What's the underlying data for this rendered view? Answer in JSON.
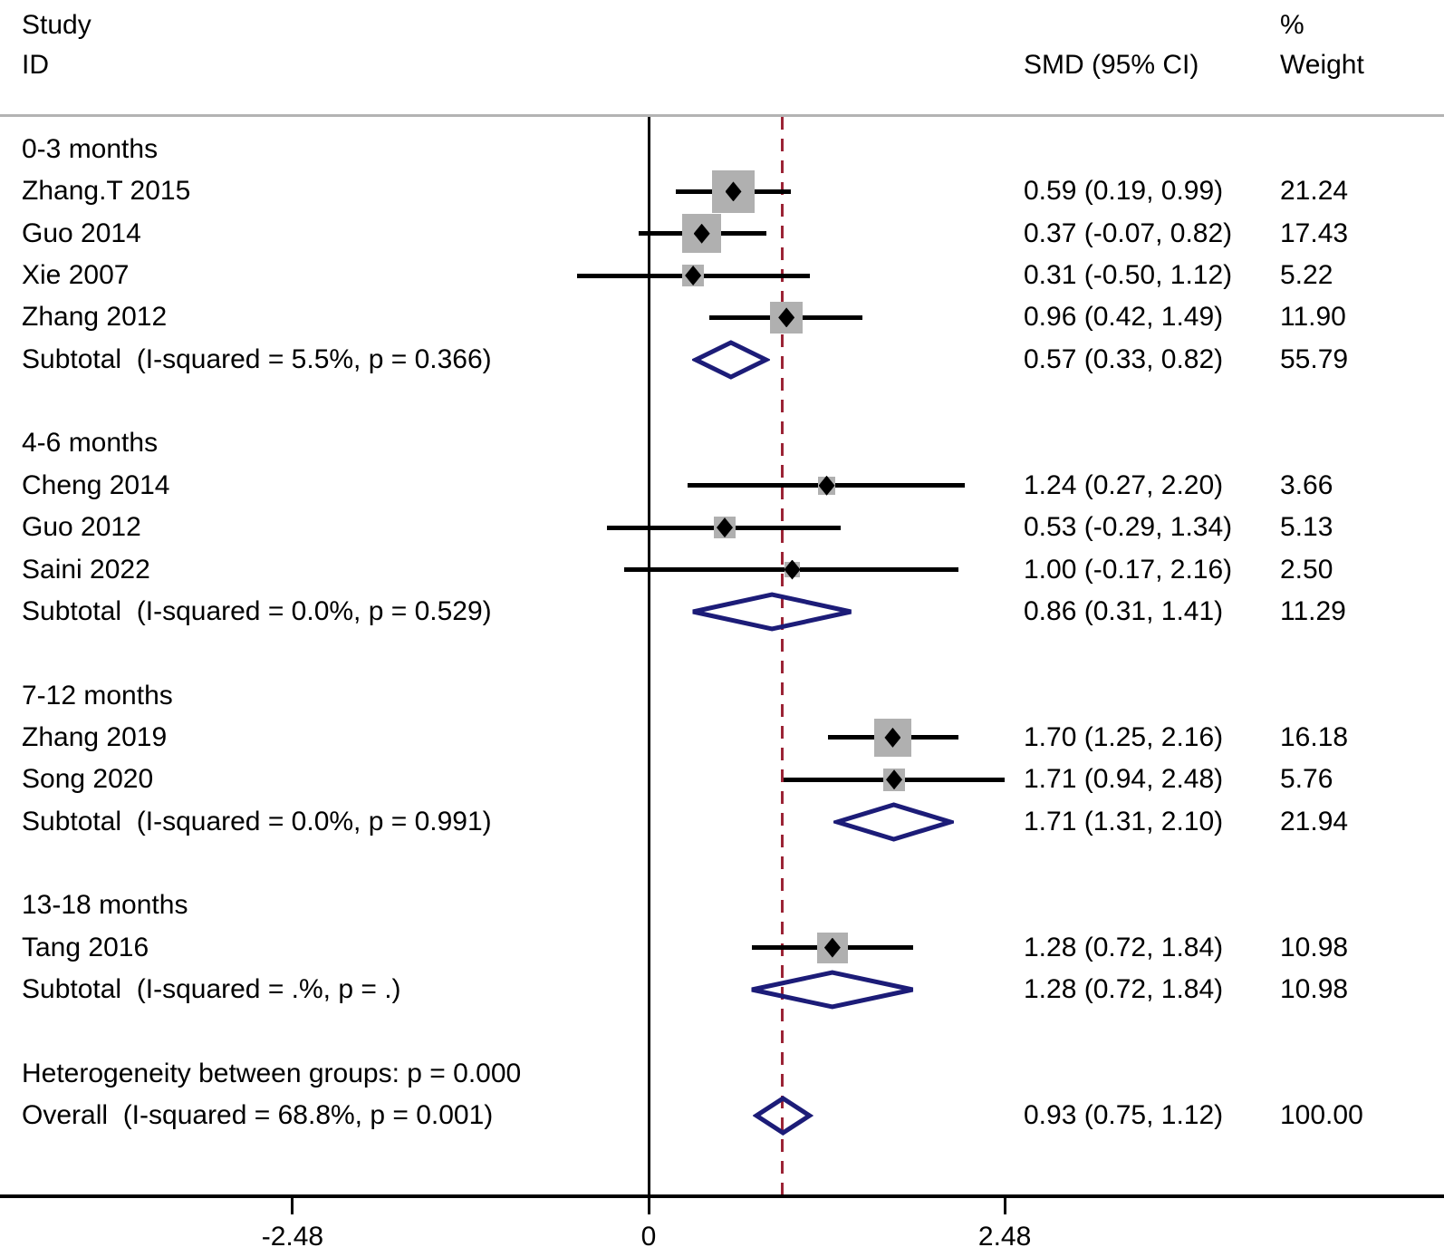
{
  "header": {
    "study_col_line1": "Study",
    "study_col_line2": "ID",
    "smd_col": "SMD (95% CI)",
    "weight_col_line1": "%",
    "weight_col_line2": "Weight"
  },
  "colors": {
    "pooled_diamond": "#1c1c78",
    "overall_dashed_line": "#9b2335",
    "ci_line": "#000000",
    "weight_square": "#b0b0b0",
    "point_marker": "#000000",
    "divider_line": "#b3b3b3",
    "axis_line": "#000000",
    "text": "#000000"
  },
  "chart_data": {
    "type": "forest",
    "effect_measure": "SMD",
    "xlabel": "",
    "x_ticks": [
      -2.48,
      0,
      2.48
    ],
    "x_tick_labels": [
      "-2.48",
      "0",
      "2.48"
    ],
    "null_line_x": 0,
    "overall_line_x": 0.93,
    "groups": [
      {
        "label": "0-3 months",
        "studies": [
          {
            "id": "Zhang.T 2015",
            "smd": 0.59,
            "ci_low": 0.19,
            "ci_high": 0.99,
            "smd_text": "0.59 (0.19, 0.99)",
            "weight": 21.24,
            "weight_text": "21.24"
          },
          {
            "id": "Guo 2014",
            "smd": 0.37,
            "ci_low": -0.07,
            "ci_high": 0.82,
            "smd_text": "0.37 (-0.07, 0.82)",
            "weight": 17.43,
            "weight_text": "17.43"
          },
          {
            "id": "Xie 2007",
            "smd": 0.31,
            "ci_low": -0.5,
            "ci_high": 1.12,
            "smd_text": "0.31 (-0.50, 1.12)",
            "weight": 5.22,
            "weight_text": "5.22"
          },
          {
            "id": "Zhang 2012",
            "smd": 0.96,
            "ci_low": 0.42,
            "ci_high": 1.49,
            "smd_text": "0.96 (0.42, 1.49)",
            "weight": 11.9,
            "weight_text": "11.90"
          }
        ],
        "subtotal": {
          "label": "Subtotal  (I-squared = 5.5%, p = 0.366)",
          "smd": 0.57,
          "ci_low": 0.33,
          "ci_high": 0.82,
          "smd_text": "0.57 (0.33, 0.82)",
          "weight_text": "55.79"
        }
      },
      {
        "label": "4-6 months",
        "studies": [
          {
            "id": "Cheng 2014",
            "smd": 1.24,
            "ci_low": 0.27,
            "ci_high": 2.2,
            "smd_text": "1.24 (0.27, 2.20)",
            "weight": 3.66,
            "weight_text": "3.66"
          },
          {
            "id": "Guo 2012",
            "smd": 0.53,
            "ci_low": -0.29,
            "ci_high": 1.34,
            "smd_text": "0.53 (-0.29, 1.34)",
            "weight": 5.13,
            "weight_text": "5.13"
          },
          {
            "id": "Saini 2022",
            "smd": 1.0,
            "ci_low": -0.17,
            "ci_high": 2.16,
            "smd_text": "1.00 (-0.17, 2.16)",
            "weight": 2.5,
            "weight_text": "2.50"
          }
        ],
        "subtotal": {
          "label": "Subtotal  (I-squared = 0.0%, p = 0.529)",
          "smd": 0.86,
          "ci_low": 0.31,
          "ci_high": 1.41,
          "smd_text": "0.86 (0.31, 1.41)",
          "weight_text": "11.29"
        }
      },
      {
        "label": "7-12 months",
        "studies": [
          {
            "id": "Zhang 2019",
            "smd": 1.7,
            "ci_low": 1.25,
            "ci_high": 2.16,
            "smd_text": "1.70 (1.25, 2.16)",
            "weight": 16.18,
            "weight_text": "16.18"
          },
          {
            "id": "Song 2020",
            "smd": 1.71,
            "ci_low": 0.94,
            "ci_high": 2.48,
            "smd_text": "1.71 (0.94, 2.48)",
            "weight": 5.76,
            "weight_text": "5.76"
          }
        ],
        "subtotal": {
          "label": "Subtotal  (I-squared = 0.0%, p = 0.991)",
          "smd": 1.71,
          "ci_low": 1.31,
          "ci_high": 2.1,
          "smd_text": "1.71 (1.31, 2.10)",
          "weight_text": "21.94"
        }
      },
      {
        "label": "13-18 months",
        "studies": [
          {
            "id": "Tang 2016",
            "smd": 1.28,
            "ci_low": 0.72,
            "ci_high": 1.84,
            "smd_text": "1.28 (0.72, 1.84)",
            "weight": 10.98,
            "weight_text": "10.98"
          }
        ],
        "subtotal": {
          "label": "Subtotal  (I-squared = .%, p = .)",
          "smd": 1.28,
          "ci_low": 0.72,
          "ci_high": 1.84,
          "smd_text": "1.28 (0.72, 1.84)",
          "weight_text": "10.98"
        }
      }
    ],
    "heterogeneity_note": "Heterogeneity between groups: p = 0.000",
    "overall": {
      "label": "Overall  (I-squared = 68.8%, p = 0.001)",
      "smd": 0.93,
      "ci_low": 0.75,
      "ci_high": 1.12,
      "smd_text": "0.93 (0.75, 1.12)",
      "weight_text": "100.00"
    }
  }
}
